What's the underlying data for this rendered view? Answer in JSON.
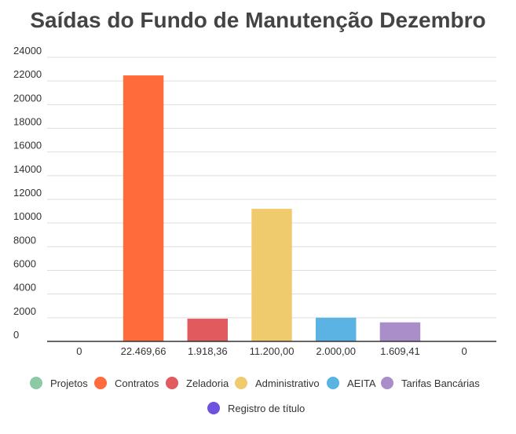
{
  "chart_data": {
    "type": "bar",
    "title": "Saídas do Fundo de Manutenção Dezembro",
    "xlabel": "",
    "ylabel": "",
    "ylim": [
      0,
      24000
    ],
    "yticks": [
      0,
      2000,
      4000,
      6000,
      8000,
      10000,
      12000,
      14000,
      16000,
      18000,
      20000,
      22000,
      24000
    ],
    "grid": true,
    "legend_position": "bottom",
    "categories": [
      "Projetos",
      "Contratos",
      "Zeladoria",
      "Administrativo",
      "AEITA",
      "Tarifas Bancárias",
      "Registro de título"
    ],
    "values": [
      0,
      22469.66,
      1918.36,
      11200.0,
      2000.0,
      1609.41,
      0
    ],
    "data_labels": [
      "0",
      "22.469,66",
      "1.918,36",
      "11.200,00",
      "2.000,00",
      "1.609,41",
      "0"
    ],
    "colors": [
      "#8ec9a6",
      "#ff6b3b",
      "#e05a5e",
      "#f0cb6e",
      "#5bb3e3",
      "#a98ec9",
      "#6d52e0"
    ]
  }
}
